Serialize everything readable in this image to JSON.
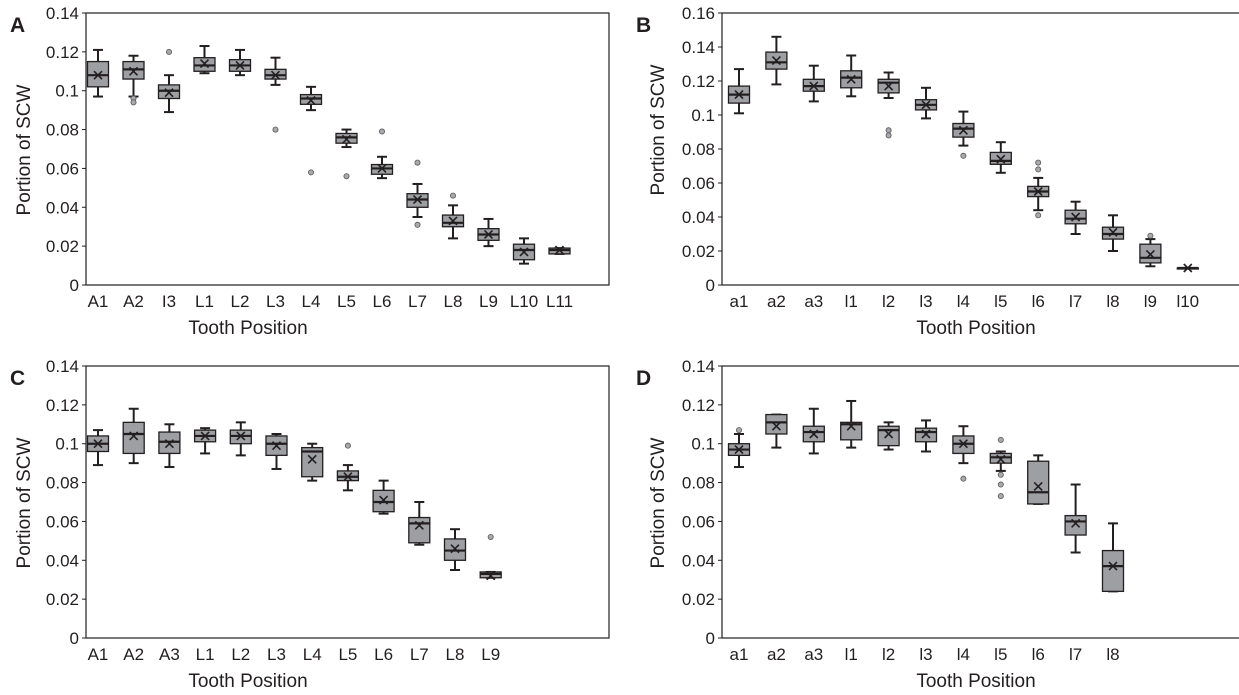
{
  "chart_data": [
    {
      "type": "box",
      "panel_label": "A",
      "xlabel": "Tooth Position",
      "ylabel": "Portion of SCW",
      "ylim": [
        0,
        0.14
      ],
      "yticks": [
        "0",
        "0.02",
        "0.04",
        "0.06",
        "0.08",
        "0.1",
        "0.12",
        "0.14"
      ],
      "categories": [
        "A1",
        "A2",
        "I3",
        "L1",
        "L2",
        "L3",
        "L4",
        "L5",
        "L6",
        "L7",
        "L8",
        "L9",
        "L10",
        "L11"
      ],
      "boxes": [
        {
          "min": 0.097,
          "q1": 0.102,
          "median": 0.108,
          "q3": 0.115,
          "max": 0.121,
          "mean": 0.108,
          "outliers": []
        },
        {
          "min": 0.097,
          "q1": 0.106,
          "median": 0.111,
          "q3": 0.115,
          "max": 0.118,
          "mean": 0.11,
          "outliers": [
            0.096,
            0.094
          ]
        },
        {
          "min": 0.089,
          "q1": 0.096,
          "median": 0.1,
          "q3": 0.103,
          "max": 0.108,
          "mean": 0.099,
          "outliers": [
            0.12
          ]
        },
        {
          "min": 0.109,
          "q1": 0.11,
          "median": 0.113,
          "q3": 0.117,
          "max": 0.123,
          "mean": 0.114,
          "outliers": []
        },
        {
          "min": 0.108,
          "q1": 0.11,
          "median": 0.113,
          "q3": 0.116,
          "max": 0.121,
          "mean": 0.113,
          "outliers": []
        },
        {
          "min": 0.103,
          "q1": 0.106,
          "median": 0.108,
          "q3": 0.111,
          "max": 0.117,
          "mean": 0.108,
          "outliers": [
            0.08
          ]
        },
        {
          "min": 0.09,
          "q1": 0.093,
          "median": 0.096,
          "q3": 0.098,
          "max": 0.102,
          "mean": 0.095,
          "outliers": [
            0.058
          ]
        },
        {
          "min": 0.071,
          "q1": 0.073,
          "median": 0.076,
          "q3": 0.078,
          "max": 0.08,
          "mean": 0.075,
          "outliers": [
            0.056
          ]
        },
        {
          "min": 0.055,
          "q1": 0.057,
          "median": 0.06,
          "q3": 0.062,
          "max": 0.066,
          "mean": 0.06,
          "outliers": [
            0.079
          ]
        },
        {
          "min": 0.035,
          "q1": 0.04,
          "median": 0.044,
          "q3": 0.047,
          "max": 0.052,
          "mean": 0.044,
          "outliers": [
            0.063,
            0.031
          ]
        },
        {
          "min": 0.024,
          "q1": 0.03,
          "median": 0.032,
          "q3": 0.036,
          "max": 0.041,
          "mean": 0.033,
          "outliers": [
            0.046
          ]
        },
        {
          "min": 0.02,
          "q1": 0.023,
          "median": 0.026,
          "q3": 0.029,
          "max": 0.034,
          "mean": 0.026,
          "outliers": []
        },
        {
          "min": 0.011,
          "q1": 0.013,
          "median": 0.018,
          "q3": 0.021,
          "max": 0.024,
          "mean": 0.017,
          "outliers": []
        },
        {
          "min": 0.016,
          "q1": 0.016,
          "median": 0.018,
          "q3": 0.019,
          "max": 0.019,
          "mean": 0.018,
          "outliers": []
        }
      ]
    },
    {
      "type": "box",
      "panel_label": "B",
      "xlabel": "Tooth Position",
      "ylabel": "Portion of SCW",
      "ylim": [
        0,
        0.16
      ],
      "yticks": [
        "0",
        "0.02",
        "0.04",
        "0.06",
        "0.08",
        "0.1",
        "0.12",
        "0.14",
        "0.16"
      ],
      "categories": [
        "a1",
        "a2",
        "a3",
        "l1",
        "l2",
        "l3",
        "l4",
        "l5",
        "l6",
        "l7",
        "l8",
        "l9",
        "l10"
      ],
      "boxes": [
        {
          "min": 0.101,
          "q1": 0.107,
          "median": 0.112,
          "q3": 0.117,
          "max": 0.127,
          "mean": 0.112,
          "outliers": []
        },
        {
          "min": 0.118,
          "q1": 0.127,
          "median": 0.131,
          "q3": 0.137,
          "max": 0.146,
          "mean": 0.132,
          "outliers": []
        },
        {
          "min": 0.108,
          "q1": 0.114,
          "median": 0.117,
          "q3": 0.121,
          "max": 0.129,
          "mean": 0.117,
          "outliers": []
        },
        {
          "min": 0.111,
          "q1": 0.116,
          "median": 0.122,
          "q3": 0.126,
          "max": 0.135,
          "mean": 0.121,
          "outliers": []
        },
        {
          "min": 0.11,
          "q1": 0.113,
          "median": 0.119,
          "q3": 0.121,
          "max": 0.125,
          "mean": 0.117,
          "outliers": [
            0.091,
            0.088
          ]
        },
        {
          "min": 0.098,
          "q1": 0.103,
          "median": 0.106,
          "q3": 0.109,
          "max": 0.116,
          "mean": 0.106,
          "outliers": []
        },
        {
          "min": 0.082,
          "q1": 0.087,
          "median": 0.092,
          "q3": 0.095,
          "max": 0.102,
          "mean": 0.091,
          "outliers": [
            0.076
          ]
        },
        {
          "min": 0.066,
          "q1": 0.071,
          "median": 0.073,
          "q3": 0.078,
          "max": 0.084,
          "mean": 0.074,
          "outliers": []
        },
        {
          "min": 0.044,
          "q1": 0.052,
          "median": 0.055,
          "q3": 0.058,
          "max": 0.063,
          "mean": 0.055,
          "outliers": [
            0.072,
            0.068,
            0.041
          ]
        },
        {
          "min": 0.03,
          "q1": 0.036,
          "median": 0.039,
          "q3": 0.044,
          "max": 0.049,
          "mean": 0.04,
          "outliers": []
        },
        {
          "min": 0.02,
          "q1": 0.027,
          "median": 0.03,
          "q3": 0.034,
          "max": 0.041,
          "mean": 0.031,
          "outliers": []
        },
        {
          "min": 0.011,
          "q1": 0.013,
          "median": 0.016,
          "q3": 0.024,
          "max": 0.027,
          "mean": 0.018,
          "outliers": [
            0.029
          ]
        },
        {
          "min": 0.01,
          "q1": 0.01,
          "median": 0.01,
          "q3": 0.01,
          "max": 0.01,
          "mean": 0.01,
          "outliers": []
        }
      ]
    },
    {
      "type": "box",
      "panel_label": "C",
      "xlabel": "Tooth Position",
      "ylabel": "Portion of SCW",
      "ylim": [
        0,
        0.14
      ],
      "yticks": [
        "0",
        "0.02",
        "0.04",
        "0.06",
        "0.08",
        "0.1",
        "0.12",
        "0.14"
      ],
      "categories": [
        "A1",
        "A2",
        "A3",
        "L1",
        "L2",
        "L3",
        "L4",
        "L5",
        "L6",
        "L7",
        "L8",
        "L9"
      ],
      "boxes": [
        {
          "min": 0.089,
          "q1": 0.096,
          "median": 0.1,
          "q3": 0.104,
          "max": 0.107,
          "mean": 0.1,
          "outliers": []
        },
        {
          "min": 0.09,
          "q1": 0.095,
          "median": 0.105,
          "q3": 0.111,
          "max": 0.118,
          "mean": 0.104,
          "outliers": []
        },
        {
          "min": 0.088,
          "q1": 0.095,
          "median": 0.101,
          "q3": 0.106,
          "max": 0.11,
          "mean": 0.1,
          "outliers": []
        },
        {
          "min": 0.095,
          "q1": 0.101,
          "median": 0.104,
          "q3": 0.107,
          "max": 0.108,
          "mean": 0.104,
          "outliers": []
        },
        {
          "min": 0.094,
          "q1": 0.1,
          "median": 0.104,
          "q3": 0.107,
          "max": 0.111,
          "mean": 0.104,
          "outliers": []
        },
        {
          "min": 0.087,
          "q1": 0.094,
          "median": 0.1,
          "q3": 0.104,
          "max": 0.105,
          "mean": 0.099,
          "outliers": []
        },
        {
          "min": 0.081,
          "q1": 0.083,
          "median": 0.096,
          "q3": 0.098,
          "max": 0.1,
          "mean": 0.092,
          "outliers": []
        },
        {
          "min": 0.076,
          "q1": 0.081,
          "median": 0.083,
          "q3": 0.086,
          "max": 0.089,
          "mean": 0.083,
          "outliers": [
            0.099
          ]
        },
        {
          "min": 0.064,
          "q1": 0.065,
          "median": 0.07,
          "q3": 0.076,
          "max": 0.081,
          "mean": 0.071,
          "outliers": []
        },
        {
          "min": 0.048,
          "q1": 0.049,
          "median": 0.059,
          "q3": 0.062,
          "max": 0.07,
          "mean": 0.058,
          "outliers": []
        },
        {
          "min": 0.035,
          "q1": 0.04,
          "median": 0.045,
          "q3": 0.051,
          "max": 0.056,
          "mean": 0.046,
          "outliers": []
        },
        {
          "min": 0.031,
          "q1": 0.031,
          "median": 0.033,
          "q3": 0.034,
          "max": 0.034,
          "mean": 0.032,
          "outliers": [
            0.052
          ]
        }
      ]
    },
    {
      "type": "box",
      "panel_label": "D",
      "xlabel": "Tooth Position",
      "ylabel": "Portion of SCW",
      "ylim": [
        0,
        0.14
      ],
      "yticks": [
        "0",
        "0.02",
        "0.04",
        "0.06",
        "0.08",
        "0.1",
        "0.12",
        "0.14"
      ],
      "categories": [
        "a1",
        "a2",
        "a3",
        "l1",
        "l2",
        "l3",
        "l4",
        "l5",
        "l6",
        "l7",
        "l8"
      ],
      "boxes": [
        {
          "min": 0.088,
          "q1": 0.094,
          "median": 0.097,
          "q3": 0.1,
          "max": 0.105,
          "mean": 0.097,
          "outliers": [
            0.107
          ]
        },
        {
          "min": 0.098,
          "q1": 0.105,
          "median": 0.111,
          "q3": 0.115,
          "max": 0.115,
          "mean": 0.109,
          "outliers": []
        },
        {
          "min": 0.095,
          "q1": 0.101,
          "median": 0.106,
          "q3": 0.109,
          "max": 0.118,
          "mean": 0.105,
          "outliers": []
        },
        {
          "min": 0.098,
          "q1": 0.102,
          "median": 0.11,
          "q3": 0.111,
          "max": 0.122,
          "mean": 0.109,
          "outliers": []
        },
        {
          "min": 0.097,
          "q1": 0.099,
          "median": 0.107,
          "q3": 0.109,
          "max": 0.111,
          "mean": 0.105,
          "outliers": []
        },
        {
          "min": 0.096,
          "q1": 0.101,
          "median": 0.106,
          "q3": 0.108,
          "max": 0.112,
          "mean": 0.105,
          "outliers": []
        },
        {
          "min": 0.09,
          "q1": 0.095,
          "median": 0.1,
          "q3": 0.104,
          "max": 0.109,
          "mean": 0.1,
          "outliers": [
            0.082
          ]
        },
        {
          "min": 0.086,
          "q1": 0.09,
          "median": 0.093,
          "q3": 0.095,
          "max": 0.096,
          "mean": 0.092,
          "outliers": [
            0.102,
            0.084,
            0.079,
            0.073
          ]
        },
        {
          "min": 0.069,
          "q1": 0.069,
          "median": 0.075,
          "q3": 0.091,
          "max": 0.094,
          "mean": 0.078,
          "outliers": []
        },
        {
          "min": 0.044,
          "q1": 0.053,
          "median": 0.06,
          "q3": 0.063,
          "max": 0.079,
          "mean": 0.059,
          "outliers": []
        },
        {
          "min": 0.024,
          "q1": 0.024,
          "median": 0.037,
          "q3": 0.045,
          "max": 0.059,
          "mean": 0.037,
          "outliers": []
        }
      ]
    }
  ]
}
